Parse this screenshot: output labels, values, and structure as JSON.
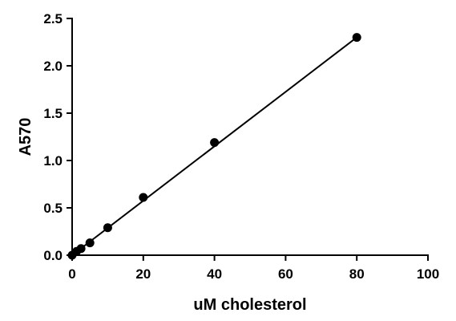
{
  "chart_data": {
    "type": "scatter",
    "title": "",
    "xlabel": "uM cholesterol",
    "ylabel": "A570",
    "xlim": [
      0,
      100
    ],
    "ylim": [
      0,
      2.5
    ],
    "x_ticks": [
      "0",
      "20",
      "40",
      "60",
      "80",
      "100"
    ],
    "y_ticks": [
      "0.0",
      "0.5",
      "1.0",
      "1.5",
      "2.0",
      "2.5"
    ],
    "grid": false,
    "legend": "none",
    "series": [
      {
        "x": [
          0,
          1.25,
          2.5,
          5,
          10,
          20,
          40,
          80
        ],
        "y": [
          0.0,
          0.04,
          0.07,
          0.13,
          0.29,
          0.61,
          1.19,
          2.3
        ]
      }
    ],
    "fit_line": {
      "x": [
        0,
        80
      ],
      "y": [
        0.0,
        2.3
      ]
    },
    "colors": {
      "marker": "#000000",
      "line": "#000000"
    }
  }
}
